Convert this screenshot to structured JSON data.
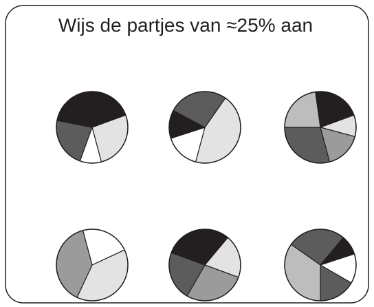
{
  "header": {
    "title": "Wijs de partjes van ≈25% aan"
  }
}
